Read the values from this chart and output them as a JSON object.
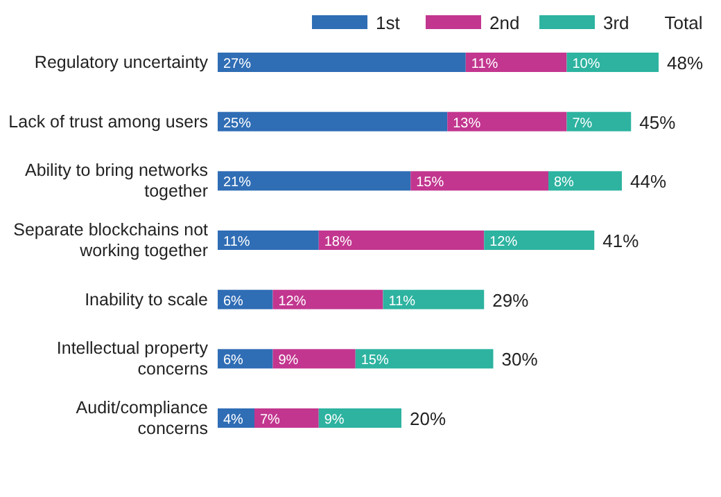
{
  "chart_data": {
    "type": "bar",
    "orientation": "horizontal",
    "stacked": true,
    "legend": "top",
    "categories": [
      "Regulatory uncertainty",
      "Lack of trust among users",
      "Ability to bring networks together",
      "Separate blockchains not working together",
      "Inability to scale",
      "Intellectual property concerns",
      "Audit/compliance concerns"
    ],
    "series": [
      {
        "name": "1st",
        "color": "#2f6db5",
        "values": [
          27,
          25,
          21,
          11,
          6,
          6,
          4
        ],
        "value_labels": [
          "27%",
          "25%",
          "21%",
          "11%",
          "6%",
          "6%",
          "4%"
        ]
      },
      {
        "name": "2nd",
        "color": "#c2368f",
        "values": [
          11,
          13,
          15,
          18,
          12,
          9,
          7
        ],
        "value_labels": [
          "11%",
          "13%",
          "15%",
          "18%",
          "12%",
          "9%",
          "7%"
        ]
      },
      {
        "name": "3rd",
        "color": "#2db3a0",
        "values": [
          10,
          7,
          8,
          12,
          11,
          15,
          9
        ],
        "value_labels": [
          "10%",
          "7%",
          "8%",
          "12%",
          "11%",
          "15%",
          "9%"
        ]
      }
    ],
    "totals": [
      "48%",
      "45%",
      "44%",
      "41%",
      "29%",
      "30%",
      "20%"
    ],
    "annotations": [
      "Total"
    ]
  }
}
